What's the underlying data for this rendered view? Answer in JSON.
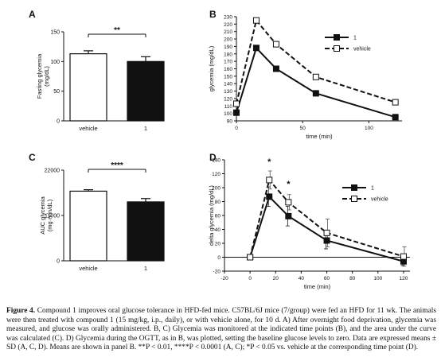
{
  "chart_data": [
    {
      "panel": "A",
      "type": "bar",
      "categories": [
        "vehicle",
        "1"
      ],
      "values": [
        113,
        100
      ],
      "errors": [
        5,
        8
      ],
      "fills": [
        "#ffffff",
        "#111111"
      ],
      "ylabel": [
        "Fasting glycemia",
        "(mg/dL)"
      ],
      "ylim": [
        0,
        150
      ],
      "yticks": [
        "0",
        "50",
        "100",
        "150"
      ],
      "significance": "**"
    },
    {
      "panel": "B",
      "type": "line",
      "xlabel": "time (min)",
      "ylabel": "glycemia (mg/dL)",
      "xlim": [
        0,
        125
      ],
      "ylim": [
        90,
        230
      ],
      "xticks": [
        "0",
        "50",
        "100"
      ],
      "yticks": [
        "90",
        "100",
        "110",
        "120",
        "130",
        "140",
        "150",
        "160",
        "170",
        "180",
        "190",
        "200",
        "210",
        "220",
        "230"
      ],
      "series": [
        {
          "name": "1",
          "x": [
            0,
            15,
            30,
            60,
            120
          ],
          "y": [
            101,
            188,
            160,
            127,
            95
          ],
          "marker": "filled",
          "dash": false
        },
        {
          "name": "vehicle",
          "x": [
            0,
            15,
            30,
            60,
            120
          ],
          "y": [
            113,
            225,
            193,
            149,
            115
          ],
          "marker": "open",
          "dash": true
        }
      ]
    },
    {
      "panel": "C",
      "type": "bar",
      "categories": [
        "vehicle",
        "1"
      ],
      "values": [
        16900,
        14300
      ],
      "errors": [
        350,
        800
      ],
      "fills": [
        "#ffffff",
        "#111111"
      ],
      "ylabel": [
        "AUC glycemia",
        "(mg·min/dL)"
      ],
      "ylim": [
        0,
        22000
      ],
      "yticks": [
        "0",
        "11000",
        "22000"
      ],
      "significance": "****"
    },
    {
      "panel": "D",
      "type": "line",
      "xlabel": "time (min)",
      "ylabel": "delta glycemia (mg/dL)",
      "xlim": [
        -20,
        125
      ],
      "ylim": [
        -20,
        140
      ],
      "xticks": [
        "-20",
        "0",
        "20",
        "40",
        "60",
        "80",
        "100",
        "120"
      ],
      "yticks": [
        "-20",
        "0",
        "20",
        "40",
        "60",
        "80",
        "100",
        "120",
        "140"
      ],
      "series": [
        {
          "name": "1",
          "x": [
            0,
            15,
            30,
            60,
            120
          ],
          "y": [
            0,
            87,
            59,
            24,
            -6
          ],
          "err": [
            0,
            14,
            14,
            12,
            6
          ],
          "marker": "filled",
          "dash": false
        },
        {
          "name": "vehicle",
          "x": [
            0,
            15,
            30,
            60,
            120
          ],
          "y": [
            0,
            111,
            79,
            35,
            1
          ],
          "err": [
            0,
            13,
            11,
            20,
            14
          ],
          "marker": "open",
          "dash": true
        }
      ],
      "annotations": [
        {
          "x": 15,
          "y": 133,
          "text": "*"
        },
        {
          "x": 30,
          "y": 101,
          "text": "*"
        }
      ]
    }
  ],
  "caption": {
    "label": "Figure 4.",
    "text": "Compound 1 improves oral glucose tolerance in HFD-fed mice. C57BL/6J mice (7/group) were fed an HFD for 11 wk. The animals were then treated with compound 1 (15 mg/kg, i.p., daily), or with vehicle alone, for 10 d. A) After overnight food deprivation, glycemia was measured, and glucose was orally administered. B, C) Glycemia was monitored at the indicated time points (B), and the area under the curve was calculated (C). D) Glycemia during the OGTT, as in B, was plotted, setting the baseline glucose levels to zero. Data are expressed means ± SD (A, C, D). Means are shown in panel B. **P < 0.01, ****P < 0.0001 (A, C); *P < 0.05 vs. vehicle at the corresponding time point (D)."
  }
}
